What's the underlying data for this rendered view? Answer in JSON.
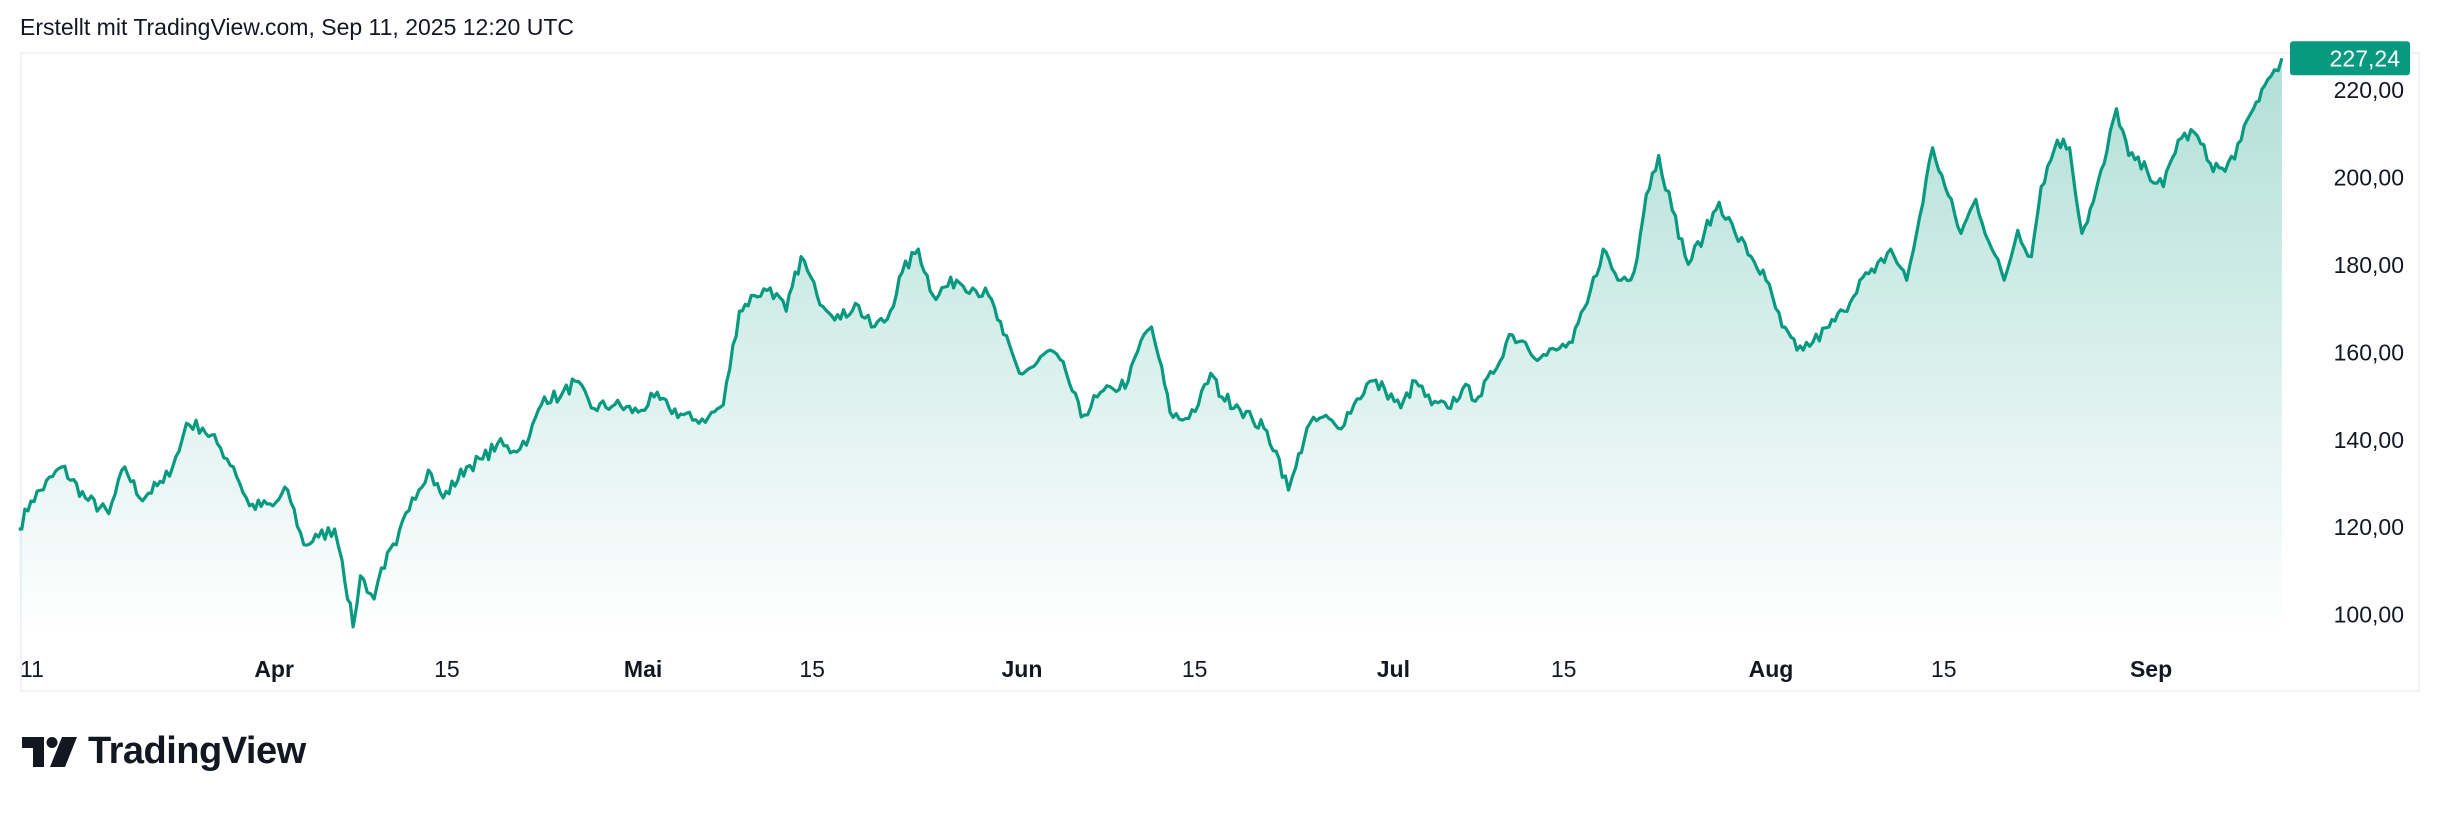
{
  "header": {
    "caption": "Erstellt mit TradingView.com, Sep 11, 2025 12:20 UTC"
  },
  "brand": {
    "name": "TradingView"
  },
  "colors": {
    "line": "#089981",
    "fill_top": "#089981",
    "label_bg": "#089981",
    "label_text": "#ffffff"
  },
  "chart_data": {
    "type": "area",
    "title": "",
    "xlabel": "",
    "ylabel": "",
    "x_unit": "days since Mar 10, 2025",
    "last_price": 227.24,
    "last_price_label": "227,24",
    "ylim": [
      92,
      232
    ],
    "y_ticks": [
      {
        "value": 100,
        "label": "100,00"
      },
      {
        "value": 120,
        "label": "120,00"
      },
      {
        "value": 140,
        "label": "140,00"
      },
      {
        "value": 160,
        "label": "160,00"
      },
      {
        "value": 180,
        "label": "180,00"
      },
      {
        "value": 200,
        "label": "200,00"
      },
      {
        "value": 220,
        "label": "220,00"
      }
    ],
    "x_ticks": [
      {
        "day": 1.3,
        "label": "11",
        "month": false
      },
      {
        "day": 20.7,
        "label": "Apr",
        "month": true
      },
      {
        "day": 34.7,
        "label": "15",
        "month": false
      },
      {
        "day": 50.6,
        "label": "Mai",
        "month": true
      },
      {
        "day": 64.3,
        "label": "15",
        "month": false
      },
      {
        "day": 81.3,
        "label": "Jun",
        "month": true
      },
      {
        "day": 95.3,
        "label": "15",
        "month": false
      },
      {
        "day": 111.4,
        "label": "Jul",
        "month": true
      },
      {
        "day": 125.2,
        "label": "15",
        "month": false
      },
      {
        "day": 142.0,
        "label": "Aug",
        "month": true
      },
      {
        "day": 156.0,
        "label": "15",
        "month": false
      },
      {
        "day": 172.8,
        "label": "Sep",
        "month": true
      }
    ],
    "points": [
      [
        0,
        119.6
      ],
      [
        1.0,
        126
      ],
      [
        3.5,
        133.8
      ],
      [
        5.4,
        126.7
      ],
      [
        7.3,
        123.1
      ],
      [
        8.6,
        133.8
      ],
      [
        9.8,
        126.7
      ],
      [
        11.7,
        130.2
      ],
      [
        13.0,
        137.4
      ],
      [
        13.6,
        143.8
      ],
      [
        14.9,
        142.7
      ],
      [
        16.1,
        139.1
      ],
      [
        17.4,
        133.8
      ],
      [
        18.7,
        124.9
      ],
      [
        20.6,
        124.9
      ],
      [
        21.8,
        128.5
      ],
      [
        23.1,
        116
      ],
      [
        24.3,
        117.8
      ],
      [
        25.6,
        119.6
      ],
      [
        26.2,
        112.5
      ],
      [
        27.1,
        97.2
      ],
      [
        27.7,
        108.9
      ],
      [
        28.8,
        103.6
      ],
      [
        29.4,
        110.7
      ],
      [
        30.6,
        116
      ],
      [
        31.9,
        126.7
      ],
      [
        33.2,
        133.1
      ],
      [
        34.4,
        126.7
      ],
      [
        36.3,
        133.8
      ],
      [
        37.6,
        135.6
      ],
      [
        38.8,
        139.1
      ],
      [
        40.1,
        137.4
      ],
      [
        41.4,
        140.9
      ],
      [
        42.6,
        149.8
      ],
      [
        43.9,
        149.8
      ],
      [
        45.1,
        153.4
      ],
      [
        46.4,
        147.3
      ],
      [
        48.3,
        148
      ],
      [
        50.2,
        146.3
      ],
      [
        51.5,
        149.8
      ],
      [
        52.7,
        147.3
      ],
      [
        54.6,
        144.5
      ],
      [
        55.9,
        145.2
      ],
      [
        57.1,
        148
      ],
      [
        58.4,
        169.4
      ],
      [
        59.6,
        173
      ],
      [
        60.9,
        174.7
      ],
      [
        62.2,
        169.4
      ],
      [
        63.4,
        181.9
      ],
      [
        64.7,
        173
      ],
      [
        66.6,
        167.6
      ],
      [
        67.8,
        171.2
      ],
      [
        69.1,
        165.8
      ],
      [
        70.4,
        167.6
      ],
      [
        71.6,
        178.3
      ],
      [
        72.9,
        183.6
      ],
      [
        74.1,
        173
      ],
      [
        76.0,
        176.5
      ],
      [
        77.3,
        174.7
      ],
      [
        78.6,
        173
      ],
      [
        79.8,
        164.1
      ],
      [
        81.1,
        155.2
      ],
      [
        82.3,
        156.9
      ],
      [
        83.6,
        160.5
      ],
      [
        84.9,
        155.2
      ],
      [
        86.1,
        145.2
      ],
      [
        87.4,
        149.8
      ],
      [
        88.7,
        151.6
      ],
      [
        89.9,
        153.4
      ],
      [
        91.2,
        164.1
      ],
      [
        91.8,
        165.8
      ],
      [
        92.4,
        158.7
      ],
      [
        93.3,
        146.3
      ],
      [
        94.3,
        144.5
      ],
      [
        95.6,
        148
      ],
      [
        96.6,
        155.2
      ],
      [
        97.5,
        149.8
      ],
      [
        98.7,
        148
      ],
      [
        100,
        144.5
      ],
      [
        100.9,
        142.7
      ],
      [
        101.9,
        137.4
      ],
      [
        102.9,
        128.5
      ],
      [
        103.5,
        133.8
      ],
      [
        104.4,
        142.7
      ],
      [
        105.7,
        145.2
      ],
      [
        106.9,
        142.7
      ],
      [
        108.2,
        148
      ],
      [
        109.5,
        153.4
      ],
      [
        110.7,
        151.6
      ],
      [
        112.0,
        147.3
      ],
      [
        113.2,
        153.4
      ],
      [
        114.5,
        148
      ],
      [
        115.8,
        147.3
      ],
      [
        117.0,
        151.6
      ],
      [
        118.3,
        149.8
      ],
      [
        119.5,
        155.2
      ],
      [
        120.8,
        164.1
      ],
      [
        122.1,
        162.3
      ],
      [
        123.3,
        158.7
      ],
      [
        124.6,
        160.5
      ],
      [
        125.9,
        162.3
      ],
      [
        127.1,
        171.2
      ],
      [
        128.4,
        183.6
      ],
      [
        129.6,
        176.5
      ],
      [
        130.9,
        178.3
      ],
      [
        131.9,
        196.1
      ],
      [
        132.9,
        205
      ],
      [
        134.0,
        192.5
      ],
      [
        135.3,
        180.1
      ],
      [
        136.6,
        187.2
      ],
      [
        137.8,
        194.3
      ],
      [
        139.1,
        187.2
      ],
      [
        140.4,
        181.9
      ],
      [
        141.6,
        176.5
      ],
      [
        142.9,
        165.8
      ],
      [
        144.1,
        160.5
      ],
      [
        145.4,
        162.3
      ],
      [
        146.7,
        165.8
      ],
      [
        147.9,
        169.4
      ],
      [
        149.2,
        176.5
      ],
      [
        150.4,
        178.3
      ],
      [
        151.7,
        183.6
      ],
      [
        153.0,
        176.5
      ],
      [
        153.8,
        187.2
      ],
      [
        155.1,
        206.8
      ],
      [
        156.1,
        197.9
      ],
      [
        157.4,
        187.2
      ],
      [
        158.6,
        195
      ],
      [
        159.9,
        183.6
      ],
      [
        160.9,
        176.5
      ],
      [
        162.0,
        187.9
      ],
      [
        163.1,
        181.9
      ],
      [
        163.9,
        197.9
      ],
      [
        165.2,
        208.5
      ],
      [
        166.2,
        206.8
      ],
      [
        167.2,
        187.2
      ],
      [
        168.1,
        194.3
      ],
      [
        169.0,
        203.2
      ],
      [
        170.0,
        215.7
      ],
      [
        171.0,
        205
      ],
      [
        172.5,
        201.4
      ],
      [
        173.8,
        197.9
      ],
      [
        175.0,
        208.5
      ],
      [
        176.3,
        210.3
      ],
      [
        177.6,
        203.2
      ],
      [
        178.8,
        201.4
      ],
      [
        180.1,
        208.5
      ],
      [
        181.1,
        215.7
      ],
      [
        182.0,
        221
      ],
      [
        182.8,
        224.6
      ],
      [
        183.4,
        227.24
      ]
    ]
  }
}
